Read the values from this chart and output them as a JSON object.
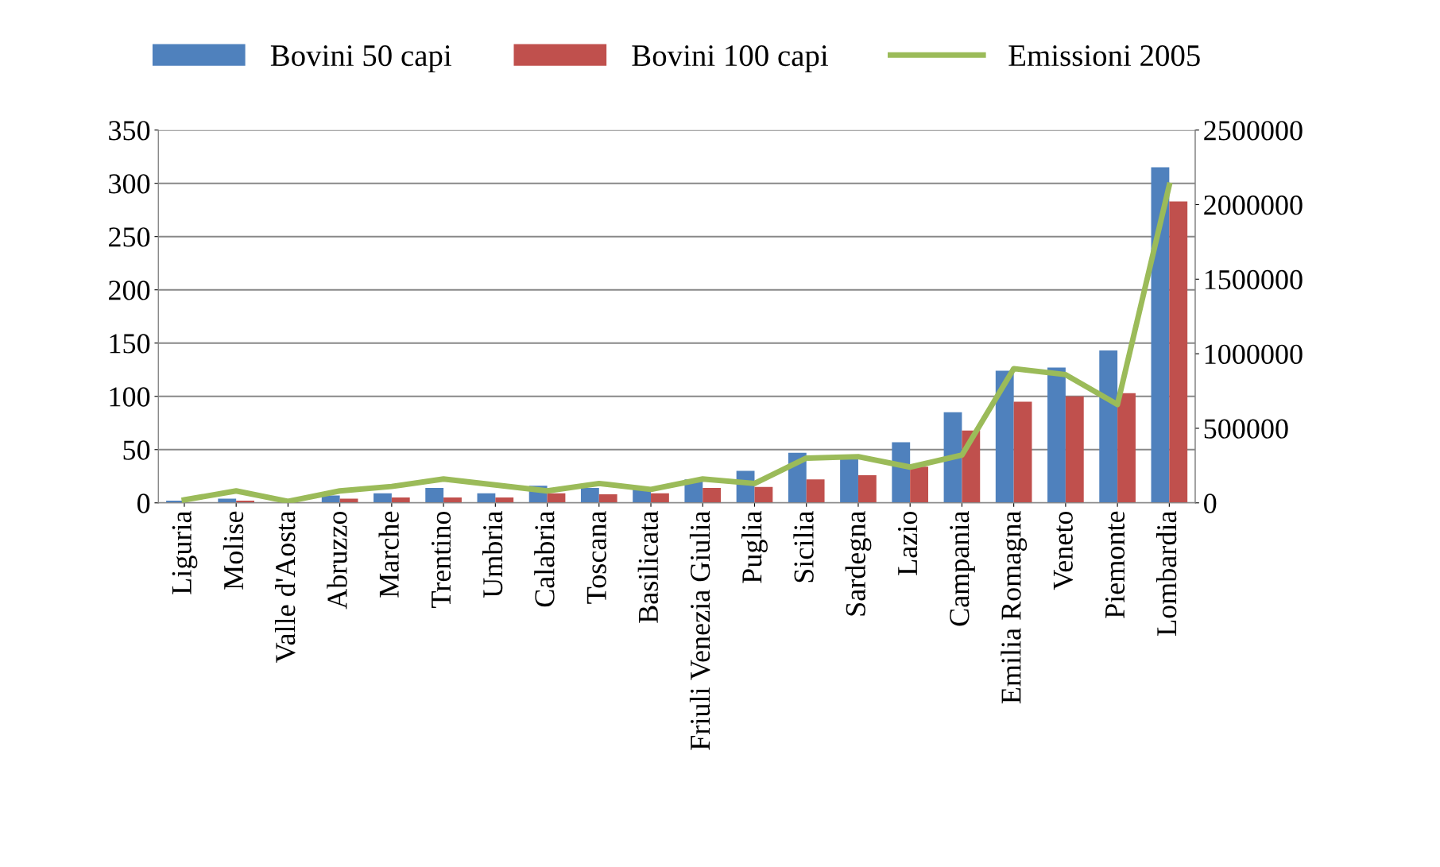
{
  "chart_data": {
    "type": "bar",
    "categories": [
      "Liguria",
      "Molise",
      "Valle d'Aosta",
      "Abruzzo",
      "Marche",
      "Trentino",
      "Umbria",
      "Calabria",
      "Toscana",
      "Basilicata",
      "Friuli Venezia Giulia",
      "Puglia",
      "Sicilia",
      "Sardegna",
      "Lazio",
      "Campania",
      "Emilia Romagna",
      "Veneto",
      "Piemonte",
      "Lombardia"
    ],
    "series": [
      {
        "name": "Bovini 50 capi",
        "color": "#4f81bd",
        "values": [
          2,
          4,
          null,
          7,
          9,
          14,
          9,
          16,
          14,
          14,
          22,
          30,
          47,
          43,
          57,
          85,
          124,
          127,
          143,
          315
        ]
      },
      {
        "name": "Bovini 100 capi",
        "color": "#c0504d",
        "values": [
          null,
          2,
          0.5,
          4,
          5,
          5,
          5,
          9,
          8,
          9,
          14,
          15,
          22,
          26,
          34,
          68,
          95,
          100,
          103,
          283
        ]
      },
      {
        "name": "Emissioni 2005",
        "color": "#9bbb59",
        "type": "line",
        "axis": "y2",
        "values": [
          20000,
          80000,
          10000,
          80000,
          110000,
          160000,
          120000,
          80000,
          130000,
          90000,
          160000,
          130000,
          300000,
          310000,
          240000,
          320000,
          900000,
          860000,
          660000,
          2130000
        ]
      }
    ],
    "ylim": [
      0,
      350
    ],
    "yticks": [
      0,
      50,
      100,
      150,
      200,
      250,
      300,
      350
    ],
    "y2lim": [
      0,
      2500000
    ],
    "y2ticks": [
      0,
      500000,
      1000000,
      1500000,
      2000000,
      2500000
    ],
    "grid": "y",
    "legend": "top"
  }
}
